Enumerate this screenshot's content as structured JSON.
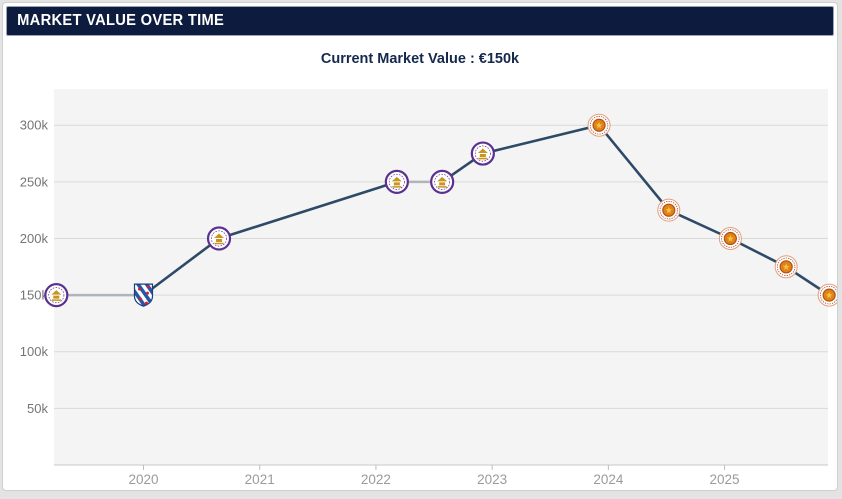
{
  "header": {
    "title": "MARKET VALUE OVER TIME"
  },
  "chart": {
    "subtitle": "Current Market Value : €150k"
  },
  "chart_data": {
    "type": "line",
    "title": "Current Market Value : €150k",
    "xlabel": "",
    "ylabel": "",
    "legend": "none",
    "grid": "horizontal-only",
    "xlim": [
      2019.23,
      2025.89
    ],
    "ylim": [
      0,
      332
    ],
    "xticks": [
      2020,
      2021,
      2022,
      2023,
      2024,
      2025
    ],
    "xtick_labels": [
      "2020",
      "2021",
      "2022",
      "2023",
      "2024",
      "2025"
    ],
    "yticks": [
      50,
      100,
      150,
      200,
      250,
      300
    ],
    "ytick_labels": [
      "50k",
      "100k",
      "150k",
      "200k",
      "250k",
      "300k"
    ],
    "points": [
      {
        "x": 2019.25,
        "value_k": 150,
        "club": "hanoi"
      },
      {
        "x": 2020.0,
        "value_k": 150,
        "club": "heerenveen"
      },
      {
        "x": 2020.65,
        "value_k": 200,
        "club": "hanoi"
      },
      {
        "x": 2022.18,
        "value_k": 250,
        "club": "hanoi"
      },
      {
        "x": 2022.57,
        "value_k": 250,
        "club": "hanoi"
      },
      {
        "x": 2022.92,
        "value_k": 275,
        "club": "hanoi"
      },
      {
        "x": 2023.92,
        "value_k": 300,
        "club": "cahn"
      },
      {
        "x": 2024.52,
        "value_k": 225,
        "club": "cahn"
      },
      {
        "x": 2025.05,
        "value_k": 200,
        "club": "cahn"
      },
      {
        "x": 2025.53,
        "value_k": 175,
        "club": "cahn"
      },
      {
        "x": 2025.9,
        "value_k": 150,
        "club": "cahn"
      }
    ],
    "colors": {
      "line": "#2e4a66",
      "line_flat": "#b0b5ba",
      "grid": "#d9d9d9",
      "axis_line": "#c9c9c9",
      "tick": "#bdbdbd",
      "plot_bg": "#f4f4f5",
      "ytick_text": "#757575",
      "xtick_text": "#9b9b9b",
      "header_bg": "#0d1c3e",
      "subtitle_text": "#15294e"
    },
    "badges": {
      "hanoi": {
        "icon": "hanoi-fc-badge-icon",
        "ring": "#5a3190",
        "bg": "#ffffff",
        "center": "#c8951e"
      },
      "heerenveen": {
        "icon": "heerenveen-shield-icon",
        "shield": "#2456a8",
        "stripe": "#ffffff",
        "accent": "#cc2233",
        "outline": "#1b3f7a"
      },
      "cahn": {
        "icon": "cong-an-ha-noi-badge-icon",
        "ring": "#c0392b",
        "bg": "#ffffff",
        "center": "#e2801a",
        "center_dark": "#a85510",
        "star": "#f5c33b"
      }
    }
  }
}
